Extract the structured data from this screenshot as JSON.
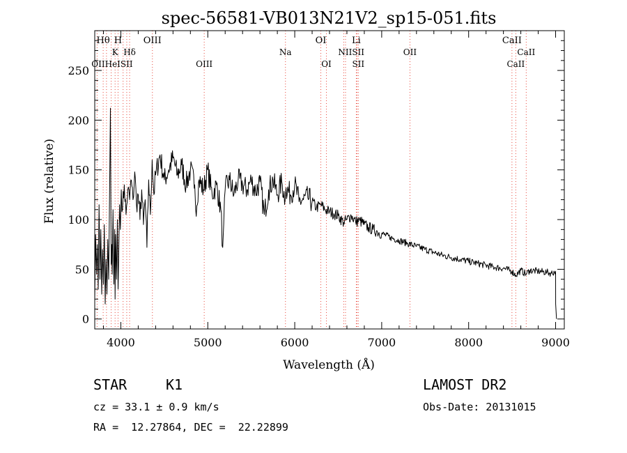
{
  "chart_data": {
    "type": "line",
    "title": "spec-56581-VB013N21V2_sp15-051.fits",
    "xlabel": "Wavelength (Å)",
    "ylabel": "Flux (relative)",
    "xlim": [
      3700,
      9100
    ],
    "ylim": [
      -10,
      290
    ],
    "xticks": [
      4000,
      5000,
      6000,
      7000,
      8000,
      9000
    ],
    "yticks": [
      0,
      50,
      100,
      150,
      200,
      250
    ],
    "grid": false,
    "series": [
      {
        "x": [
          3700,
          3710,
          3720,
          3730,
          3740,
          3750,
          3760,
          3770,
          3780,
          3790,
          3800,
          3810,
          3820,
          3830,
          3840,
          3850,
          3860,
          3870,
          3880,
          3889,
          3895,
          3900,
          3910,
          3920,
          3930,
          3934,
          3940,
          3950,
          3960,
          3968,
          3975,
          3985,
          3995,
          4005,
          4020,
          4040,
          4060,
          4080,
          4101,
          4115,
          4140,
          4160,
          4180,
          4200,
          4220,
          4240,
          4260,
          4280,
          4300,
          4320,
          4340,
          4360,
          4380,
          4400,
          4450,
          4500,
          4550,
          4600,
          4650,
          4700,
          4750,
          4800,
          4850,
          4861,
          4900,
          4950,
          5000,
          5050,
          5100,
          5150,
          5172,
          5183,
          5200,
          5250,
          5300,
          5350,
          5400,
          5450,
          5500,
          5550,
          5600,
          5650,
          5700,
          5750,
          5800,
          5850,
          5890,
          5900,
          5950,
          6000,
          6050,
          6100,
          6150,
          6200,
          6250,
          6300,
          6350,
          6400,
          6450,
          6500,
          6563,
          6600,
          6650,
          6700,
          6750,
          6800,
          6850,
          6900,
          6950,
          7000,
          7100,
          7200,
          7300,
          7400,
          7500,
          7600,
          7700,
          7800,
          7900,
          8000,
          8100,
          8200,
          8300,
          8400,
          8498,
          8542,
          8600,
          8662,
          8700,
          8800,
          8900,
          8950,
          9000,
          9001,
          9010
        ],
        "y": [
          20,
          85,
          45,
          75,
          30,
          115,
          40,
          90,
          25,
          70,
          35,
          95,
          15,
          60,
          25,
          80,
          40,
          120,
          212,
          55,
          75,
          45,
          110,
          35,
          90,
          20,
          85,
          40,
          100,
          30,
          60,
          115,
          90,
          130,
          110,
          135,
          105,
          130,
          120,
          140,
          120,
          148,
          115,
          125,
          100,
          130,
          95,
          120,
          72,
          140,
          105,
          160,
          125,
          145,
          165,
          140,
          150,
          162,
          145,
          155,
          135,
          150,
          135,
          110,
          140,
          130,
          150,
          125,
          135,
          110,
          72,
          95,
          130,
          140,
          125,
          140,
          135,
          130,
          140,
          128,
          138,
          105,
          130,
          140,
          125,
          138,
          120,
          132,
          125,
          135,
          118,
          120,
          122,
          118,
          112,
          115,
          110,
          108,
          106,
          104,
          97,
          100,
          104,
          98,
          99,
          95,
          92,
          90,
          88,
          86,
          82,
          79,
          76,
          73,
          70,
          67,
          64,
          62,
          60,
          58,
          56,
          54,
          52,
          51,
          48,
          44,
          49,
          45,
          49,
          48,
          47,
          46,
          48,
          15,
          0
        ]
      }
    ],
    "top_labels_row1": [
      {
        "text": "Hθ",
        "x": 3797
      },
      {
        "text": "H",
        "x": 3968
      },
      {
        "text": "OIII",
        "x": 4363
      },
      {
        "text": "OI",
        "x": 6300
      },
      {
        "text": "Li",
        "x": 6708
      },
      {
        "text": "CaII",
        "x": 8498
      }
    ],
    "top_labels_row2": [
      {
        "text": "K",
        "x": 3934
      },
      {
        "text": "Hδ",
        "x": 4101
      },
      {
        "text": "Na",
        "x": 5893
      },
      {
        "text": "NIISII",
        "x": 6650
      },
      {
        "text": "OII",
        "x": 7325
      },
      {
        "text": "CaII",
        "x": 8662
      }
    ],
    "top_labels_row3": [
      {
        "text": "OIIHeISII",
        "x": 3900
      },
      {
        "text": "OIII",
        "x": 4959
      },
      {
        "text": "OI",
        "x": 6364
      },
      {
        "text": "SII",
        "x": 6731
      },
      {
        "text": "CaII",
        "x": 8542
      }
    ],
    "line_marks": [
      3727,
      3797,
      3835,
      3889,
      3934,
      3968,
      4026,
      4068,
      4101,
      4363,
      4959,
      5893,
      6300,
      6364,
      6563,
      6584,
      6708,
      6716,
      6731,
      7325,
      8498,
      8542,
      8662
    ]
  },
  "info": {
    "object_class": "STAR",
    "subclass": "K1",
    "survey": "LAMOST DR2",
    "cz_line": "cz = 33.1 ± 0.9 km/s",
    "obs_date": "Obs-Date: 20131015",
    "coords": "RA =  12.27864, DEC =  22.22899"
  }
}
